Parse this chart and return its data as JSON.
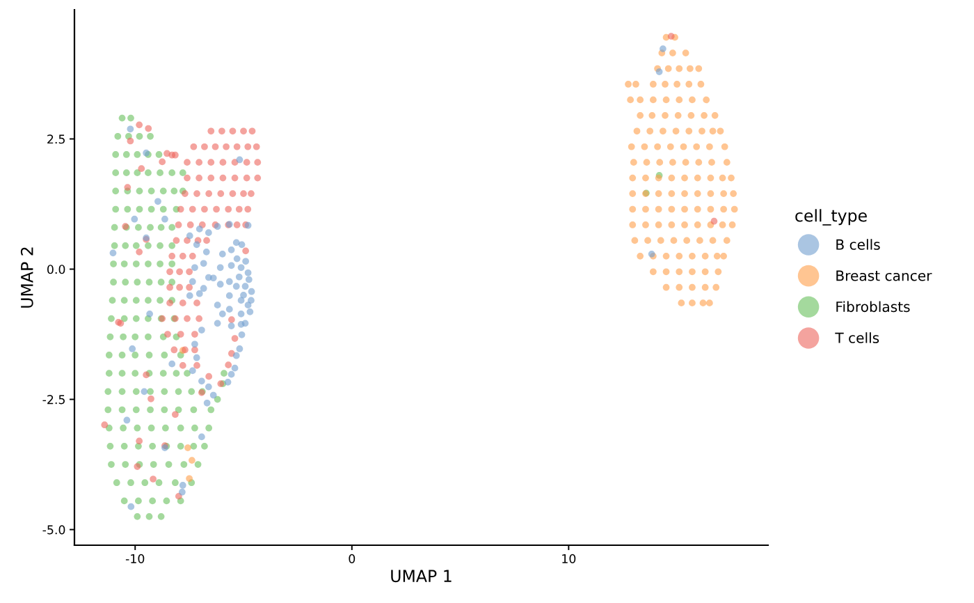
{
  "chart_data": {
    "type": "scatter",
    "xlabel": "UMAP 1",
    "ylabel": "UMAP 2",
    "legend_title": "cell_type",
    "legend": "right",
    "marker": "circle",
    "xlim": [
      -12.8,
      19.2
    ],
    "ylim": [
      -5.3,
      4.98
    ],
    "xticks": [
      -10,
      0,
      10
    ],
    "yticks": [
      {
        "value": -5,
        "label": "-5.0"
      },
      {
        "value": -2.5,
        "label": "-2.5"
      },
      {
        "value": 0,
        "label": "0.0"
      },
      {
        "value": 2.5,
        "label": "2.5"
      }
    ],
    "series": [
      {
        "name": "B cells",
        "color": "#729ece",
        "x": [
          -7.03,
          -6.61,
          -6.2,
          -5.65,
          -4.79,
          -5.33,
          -5.08,
          -5.56,
          -5.97,
          -6.71,
          -7.16,
          -7.48,
          -6.84,
          -7.25,
          -6.61,
          -6.39,
          -6.07,
          -5.56,
          -5.11,
          -4.79,
          -4.92,
          -4.63,
          -5.33,
          -5.65,
          -6.07,
          -6.84,
          -7.35,
          -7.48,
          -7.03,
          -6.2,
          -5.65,
          -5.11,
          -4.79,
          -4.7,
          -5.11,
          -5.65,
          -6.2,
          -4.92,
          -5.56,
          -4.75,
          -5.0,
          -4.65,
          -5.2,
          -4.9,
          -5.3,
          -6.93,
          -5.97,
          -5.11,
          -5.08,
          -5.18,
          -5.33,
          -5.4,
          -5.56,
          -5.72,
          -6.61,
          -6.39,
          -6.68,
          -6.93,
          -7.25,
          -7.16,
          -7.35,
          -7.83,
          -7.8,
          -10.38,
          -9.58,
          -10.13,
          -9.33,
          -8.3,
          -6.93,
          -8.63,
          -10.19,
          -11.02,
          -10.03,
          -9.49,
          -8.63,
          -8.95,
          -10.22,
          -9.49,
          -5.18,
          14.35,
          14.18,
          13.83
        ],
        "values": [
          0.77,
          0.7,
          0.82,
          0.86,
          0.84,
          0.51,
          0.47,
          0.37,
          0.29,
          0.33,
          0.47,
          0.64,
          0.11,
          0.03,
          -0.16,
          -0.17,
          0.03,
          0.07,
          0.03,
          -0.07,
          -0.33,
          -0.43,
          -0.33,
          -0.24,
          -0.29,
          -0.37,
          -0.24,
          -0.51,
          -0.47,
          -0.69,
          -0.51,
          -0.6,
          -0.69,
          -0.82,
          -0.86,
          -0.77,
          -1.04,
          -1.04,
          -1.09,
          -0.2,
          -0.5,
          -0.6,
          -0.15,
          0.15,
          0.2,
          -1.17,
          -0.86,
          -1.06,
          -1.26,
          -1.53,
          -1.66,
          -1.9,
          -2.02,
          -2.17,
          -2.26,
          -2.42,
          -2.57,
          -2.15,
          -1.44,
          -1.7,
          -1.95,
          -4.28,
          -4.15,
          -2.9,
          -2.35,
          -1.53,
          -0.86,
          -1.82,
          -3.22,
          -3.43,
          -4.56,
          0.31,
          0.96,
          0.6,
          0.96,
          1.3,
          2.69,
          2.23,
          2.1,
          4.23,
          3.79,
          0.29
        ]
      },
      {
        "name": "Breast cancer",
        "color": "#ff9e4a",
        "x": [
          14.5,
          14.9,
          14.3,
          14.8,
          15.4,
          14.1,
          14.6,
          15.1,
          15.6,
          16.0,
          12.75,
          13.1,
          13.9,
          14.45,
          15.0,
          15.55,
          16.1,
          12.85,
          13.3,
          13.9,
          14.5,
          15.1,
          15.7,
          16.35,
          13.3,
          13.85,
          14.45,
          15.05,
          15.65,
          16.25,
          16.75,
          13.15,
          13.75,
          14.35,
          14.95,
          15.55,
          16.15,
          16.65,
          17.0,
          12.9,
          13.5,
          14.1,
          14.7,
          15.3,
          15.9,
          16.5,
          17.2,
          13.0,
          13.6,
          14.2,
          14.8,
          15.4,
          16.0,
          16.6,
          17.3,
          12.95,
          13.55,
          14.15,
          14.75,
          15.35,
          15.95,
          16.55,
          17.1,
          17.5,
          12.95,
          13.55,
          14.15,
          14.75,
          15.35,
          15.95,
          16.55,
          17.15,
          17.6,
          12.95,
          13.55,
          14.15,
          14.75,
          15.35,
          15.95,
          16.55,
          17.15,
          17.65,
          12.95,
          13.55,
          14.15,
          14.75,
          15.35,
          15.95,
          16.55,
          17.1,
          17.55,
          13.05,
          13.65,
          14.25,
          14.85,
          15.45,
          16.05,
          16.65,
          17.3,
          13.3,
          13.9,
          14.5,
          15.1,
          15.7,
          16.3,
          16.85,
          17.15,
          13.9,
          14.5,
          15.1,
          15.7,
          16.3,
          16.9,
          14.5,
          15.1,
          15.7,
          16.3,
          16.8,
          15.2,
          15.7,
          16.2,
          16.5,
          -7.57,
          -7.38,
          -7.5,
          -7.8
        ],
        "values": [
          4.45,
          4.45,
          4.15,
          4.15,
          4.15,
          3.85,
          3.85,
          3.85,
          3.85,
          3.85,
          3.55,
          3.55,
          3.55,
          3.55,
          3.55,
          3.55,
          3.55,
          3.25,
          3.25,
          3.25,
          3.25,
          3.25,
          3.25,
          3.25,
          2.95,
          2.95,
          2.95,
          2.95,
          2.95,
          2.95,
          2.95,
          2.65,
          2.65,
          2.65,
          2.65,
          2.65,
          2.65,
          2.65,
          2.65,
          2.35,
          2.35,
          2.35,
          2.35,
          2.35,
          2.35,
          2.35,
          2.35,
          2.05,
          2.05,
          2.05,
          2.05,
          2.05,
          2.05,
          2.05,
          2.05,
          1.75,
          1.75,
          1.75,
          1.75,
          1.75,
          1.75,
          1.75,
          1.75,
          1.75,
          1.45,
          1.45,
          1.45,
          1.45,
          1.45,
          1.45,
          1.45,
          1.45,
          1.45,
          1.15,
          1.15,
          1.15,
          1.15,
          1.15,
          1.15,
          1.15,
          1.15,
          1.15,
          0.85,
          0.85,
          0.85,
          0.85,
          0.85,
          0.85,
          0.85,
          0.85,
          0.85,
          0.55,
          0.55,
          0.55,
          0.55,
          0.55,
          0.55,
          0.55,
          0.55,
          0.25,
          0.25,
          0.25,
          0.25,
          0.25,
          0.25,
          0.25,
          0.25,
          -0.05,
          -0.05,
          -0.05,
          -0.05,
          -0.05,
          -0.05,
          -0.35,
          -0.35,
          -0.35,
          -0.35,
          -0.35,
          -0.65,
          -0.65,
          -0.65,
          -0.65,
          -3.43,
          -3.67,
          -4.02,
          -1.56
        ]
      },
      {
        "name": "Fibroblasts",
        "color": "#67bf5c",
        "x": [
          -10.6,
          -10.2,
          -10.8,
          -10.3,
          -9.8,
          -9.3,
          -10.9,
          -10.4,
          -9.9,
          -9.4,
          -8.9,
          -10.9,
          -10.4,
          -9.9,
          -9.4,
          -8.85,
          -8.3,
          -7.8,
          -10.9,
          -10.35,
          -9.8,
          -9.25,
          -8.7,
          -8.2,
          -7.8,
          -10.9,
          -10.35,
          -9.8,
          -9.25,
          -8.7,
          -8.1,
          -10.95,
          -10.4,
          -9.85,
          -9.3,
          -8.8,
          -8.3,
          -10.95,
          -10.45,
          -9.95,
          -9.4,
          -8.85,
          -8.3,
          -11.0,
          -10.5,
          -9.95,
          -9.4,
          -8.85,
          -8.3,
          -11.0,
          -10.45,
          -9.9,
          -9.35,
          -8.8,
          -8.3,
          -11.05,
          -10.5,
          -9.95,
          -9.4,
          -8.85,
          -8.3,
          -11.1,
          -10.5,
          -9.95,
          -9.4,
          -8.8,
          -8.2,
          -11.15,
          -10.55,
          -10.0,
          -9.4,
          -8.7,
          -8.1,
          -11.2,
          -10.6,
          -10.0,
          -9.35,
          -8.65,
          -7.9,
          -11.2,
          -10.6,
          -10.0,
          -9.35,
          -8.7,
          -8.1,
          -7.6,
          -11.25,
          -10.6,
          -9.95,
          -9.3,
          -8.65,
          -8.0,
          -7.4,
          -6.9,
          -11.25,
          -10.6,
          -9.95,
          -9.3,
          -8.65,
          -8.0,
          -7.3,
          -6.5,
          -11.2,
          -10.55,
          -9.9,
          -9.25,
          -8.6,
          -7.9,
          -7.25,
          -6.6,
          -11.15,
          -10.5,
          -9.85,
          -9.2,
          -8.55,
          -7.9,
          -7.3,
          -6.8,
          -11.1,
          -10.45,
          -9.8,
          -9.15,
          -8.45,
          -7.75,
          -7.1,
          -10.85,
          -10.2,
          -9.55,
          -8.9,
          -8.15,
          -7.4,
          -10.5,
          -9.85,
          -9.2,
          -8.55,
          -7.9,
          -9.9,
          -9.35,
          -8.8,
          -6.2,
          -5.95,
          -5.9,
          13.58,
          14.18
        ],
        "values": [
          2.9,
          2.9,
          2.55,
          2.55,
          2.55,
          2.55,
          2.2,
          2.2,
          2.2,
          2.2,
          2.2,
          1.85,
          1.85,
          1.85,
          1.85,
          1.85,
          1.85,
          1.85,
          1.5,
          1.5,
          1.5,
          1.5,
          1.5,
          1.5,
          1.5,
          1.15,
          1.15,
          1.15,
          1.15,
          1.15,
          1.15,
          0.8,
          0.8,
          0.8,
          0.8,
          0.8,
          0.8,
          0.45,
          0.45,
          0.45,
          0.45,
          0.45,
          0.45,
          0.1,
          0.1,
          0.1,
          0.1,
          0.1,
          0.1,
          -0.25,
          -0.25,
          -0.25,
          -0.25,
          -0.25,
          -0.25,
          -0.6,
          -0.6,
          -0.6,
          -0.6,
          -0.6,
          -0.6,
          -0.95,
          -0.95,
          -0.95,
          -0.95,
          -0.95,
          -0.95,
          -1.3,
          -1.3,
          -1.3,
          -1.3,
          -1.3,
          -1.3,
          -1.65,
          -1.65,
          -1.65,
          -1.65,
          -1.65,
          -1.65,
          -2.0,
          -2.0,
          -2.0,
          -2.0,
          -2.0,
          -2.0,
          -2.0,
          -2.35,
          -2.35,
          -2.35,
          -2.35,
          -2.35,
          -2.35,
          -2.35,
          -2.35,
          -2.7,
          -2.7,
          -2.7,
          -2.7,
          -2.7,
          -2.7,
          -2.7,
          -2.7,
          -3.05,
          -3.05,
          -3.05,
          -3.05,
          -3.05,
          -3.05,
          -3.05,
          -3.05,
          -3.4,
          -3.4,
          -3.4,
          -3.4,
          -3.4,
          -3.4,
          -3.4,
          -3.4,
          -3.75,
          -3.75,
          -3.75,
          -3.75,
          -3.75,
          -3.75,
          -3.75,
          -4.1,
          -4.1,
          -4.1,
          -4.1,
          -4.1,
          -4.1,
          -4.45,
          -4.45,
          -4.45,
          -4.45,
          -4.45,
          -4.75,
          -4.75,
          -4.75,
          -2.5,
          -2.2,
          -2.0,
          1.46,
          1.8
        ]
      },
      {
        "name": "T cells",
        "color": "#ed665d",
        "x": [
          -6.5,
          -6.0,
          -5.5,
          -5.0,
          -4.6,
          -7.3,
          -6.8,
          -6.3,
          -5.8,
          -5.3,
          -4.8,
          -4.4,
          -7.6,
          -7.05,
          -6.5,
          -5.95,
          -5.4,
          -4.85,
          -4.35,
          -7.6,
          -7.05,
          -6.5,
          -5.95,
          -5.4,
          -4.85,
          -4.35,
          -7.7,
          -7.15,
          -6.6,
          -6.05,
          -5.5,
          -5.0,
          -4.65,
          -7.9,
          -7.35,
          -6.8,
          -6.25,
          -5.7,
          -5.2,
          -4.8,
          -8.0,
          -7.45,
          -6.9,
          -6.3,
          -5.7,
          -5.3,
          -4.9,
          -8.1,
          -7.6,
          -7.1,
          -6.7,
          -4.9,
          -8.3,
          -7.8,
          -7.35,
          -8.4,
          -7.95,
          -7.5,
          -8.4,
          -7.95,
          -7.5,
          -8.4,
          -7.8,
          -7.15,
          -8.75,
          -8.15,
          -7.6,
          -7.05,
          -5.55,
          -8.5,
          -7.9,
          -7.25,
          -5.4,
          -8.2,
          -7.7,
          -7.25,
          -5.55,
          -7.8,
          -7.15,
          -5.7,
          -6.6,
          -6.05,
          -6.93,
          -10.77,
          -9.49,
          -9.27,
          -8.15,
          -9.81,
          -8.63,
          -9.17,
          -11.41,
          -9.9,
          -7.99,
          -10.35,
          -10.22,
          -9.71,
          -9.81,
          -9.49,
          -10.45,
          -10.67,
          -9.81,
          -9.39,
          -8.3,
          -8.53,
          -8.15,
          -8.75,
          14.73,
          16.71
        ],
        "values": [
          2.65,
          2.65,
          2.65,
          2.65,
          2.65,
          2.35,
          2.35,
          2.35,
          2.35,
          2.35,
          2.35,
          2.35,
          2.05,
          2.05,
          2.05,
          2.05,
          2.05,
          2.05,
          2.05,
          1.75,
          1.75,
          1.75,
          1.75,
          1.75,
          1.75,
          1.75,
          1.45,
          1.45,
          1.45,
          1.45,
          1.45,
          1.45,
          1.45,
          1.15,
          1.15,
          1.15,
          1.15,
          1.15,
          1.15,
          1.15,
          0.85,
          0.85,
          0.85,
          0.85,
          0.85,
          0.85,
          0.85,
          0.55,
          0.55,
          0.55,
          0.55,
          0.35,
          0.25,
          0.25,
          0.25,
          -0.05,
          -0.05,
          -0.05,
          -0.35,
          -0.35,
          -0.35,
          -0.65,
          -0.65,
          -0.65,
          -0.95,
          -0.95,
          -0.95,
          -0.95,
          -0.97,
          -1.25,
          -1.25,
          -1.25,
          -1.33,
          -1.55,
          -1.55,
          -1.55,
          -1.62,
          -1.85,
          -1.85,
          -1.84,
          -2.06,
          -2.2,
          -2.37,
          -1.02,
          -2.03,
          -2.49,
          -2.79,
          -3.3,
          -3.39,
          -4.03,
          -2.99,
          -3.79,
          -4.36,
          1.57,
          2.46,
          1.93,
          0.33,
          0.57,
          0.82,
          -1.04,
          2.77,
          2.7,
          2.19,
          2.22,
          2.19,
          2.06,
          4.47,
          0.92
        ]
      }
    ]
  }
}
